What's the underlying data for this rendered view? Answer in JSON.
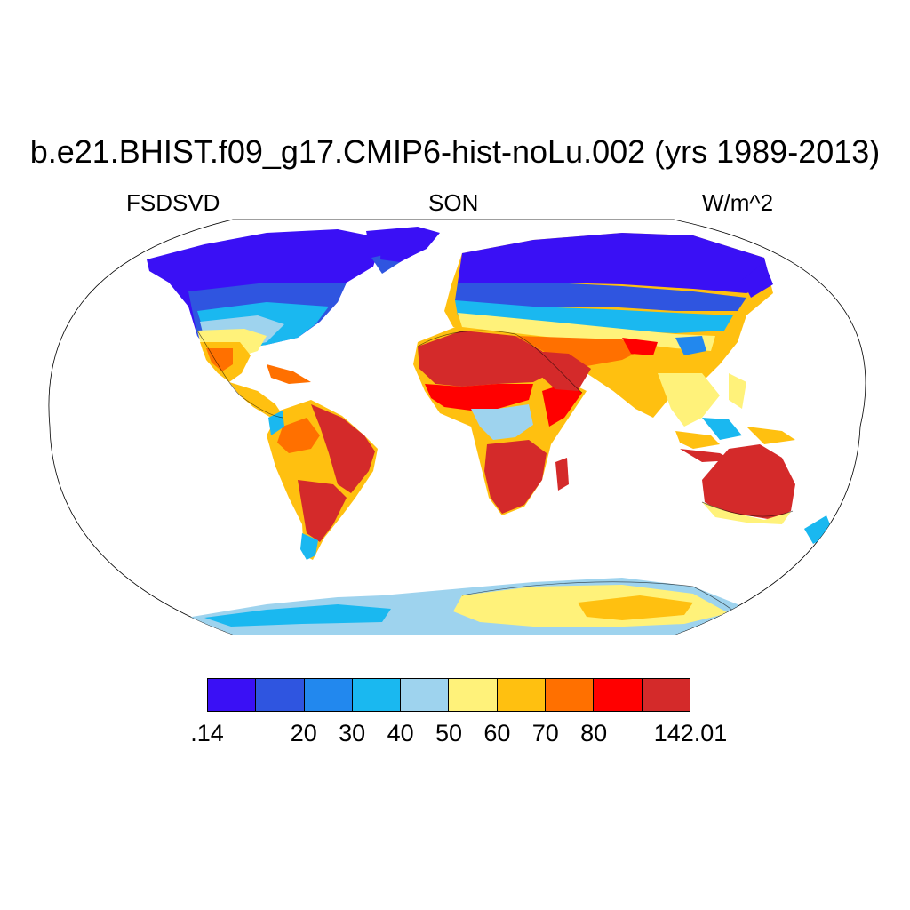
{
  "title": "b.e21.BHIST.f09_g17.CMIP6-hist-noLu.002 (yrs 1989-2013)",
  "left_label": "FSDSVD",
  "center_label": "SON",
  "right_label": "W/m^2",
  "colorbar": {
    "colors": [
      "#3a10f5",
      "#2f55e0",
      "#2288ee",
      "#1ab8f0",
      "#9ed3ee",
      "#fff27a",
      "#ffc010",
      "#ff7000",
      "#ff0000",
      "#d42a2a"
    ],
    "labels": [
      ".14",
      "20",
      "30",
      "40",
      "50",
      "60",
      "70",
      "80",
      "142.01"
    ],
    "bounds": [
      0.14,
      10,
      20,
      30,
      40,
      50,
      60,
      70,
      80,
      90,
      142.01
    ]
  }
}
